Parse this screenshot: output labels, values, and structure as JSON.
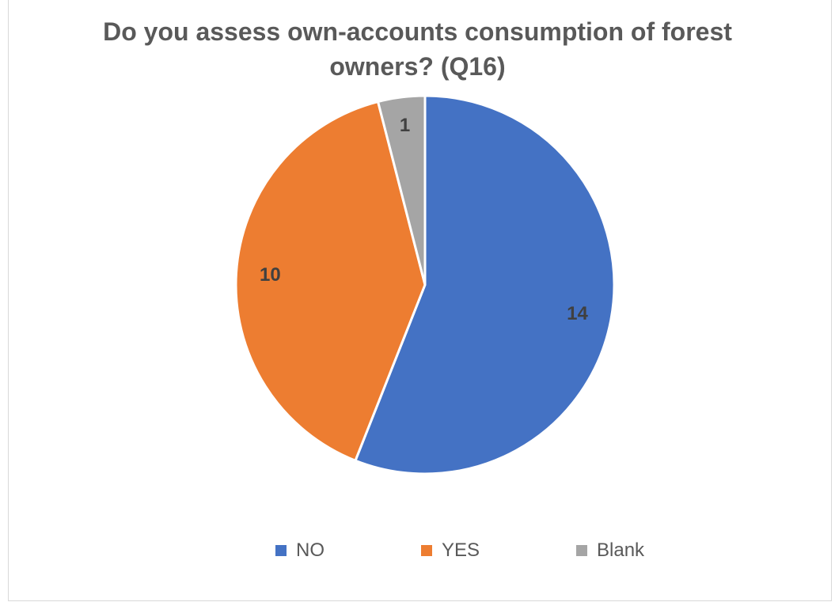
{
  "chart_data": {
    "type": "pie",
    "title_lines": [
      "Do you assess own-accounts consumption of forest",
      "owners?  (Q16)"
    ],
    "categories": [
      "NO",
      "YES",
      "Blank"
    ],
    "values": [
      14,
      10,
      1
    ],
    "colors": [
      "#4472c4",
      "#ed7d31",
      "#a5a5a5"
    ],
    "data_labels": [
      "14",
      "10",
      "1"
    ],
    "legend_position": "bottom"
  }
}
